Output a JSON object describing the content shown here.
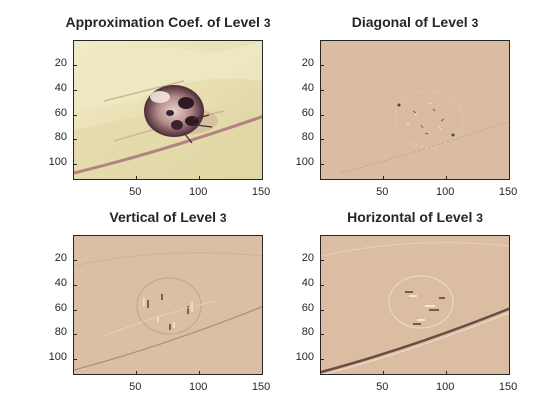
{
  "panels": [
    {
      "id": "approximation",
      "title_main": "Approximation Coef. of Level",
      "title_level": "3",
      "kind": "approx"
    },
    {
      "id": "diagonal",
      "title_main": "Diagonal of Level",
      "title_level": "3",
      "kind": "detail"
    },
    {
      "id": "vertical",
      "title_main": "Vertical of Level",
      "title_level": "3",
      "kind": "detail"
    },
    {
      "id": "horizontal",
      "title_main": "Horizontal of Level",
      "title_level": "3",
      "kind": "detail"
    }
  ],
  "axes": {
    "y_ticks": [
      "20",
      "40",
      "60",
      "80",
      "100"
    ],
    "x_ticks": [
      "50",
      "100",
      "150"
    ],
    "x_tick_values": [
      50,
      100,
      150
    ],
    "y_tick_values": [
      20,
      40,
      60,
      80,
      100
    ],
    "x_range": [
      0.5,
      151.5
    ],
    "y_range": [
      0.5,
      113.5
    ]
  },
  "colormap": {
    "approx_bg": "#ece3b8",
    "approx_dark": "#7a4a5a",
    "detail_bg": "#d9bba0",
    "detail_light": "#f1e1cf",
    "detail_dark": "#8e6a60"
  }
}
